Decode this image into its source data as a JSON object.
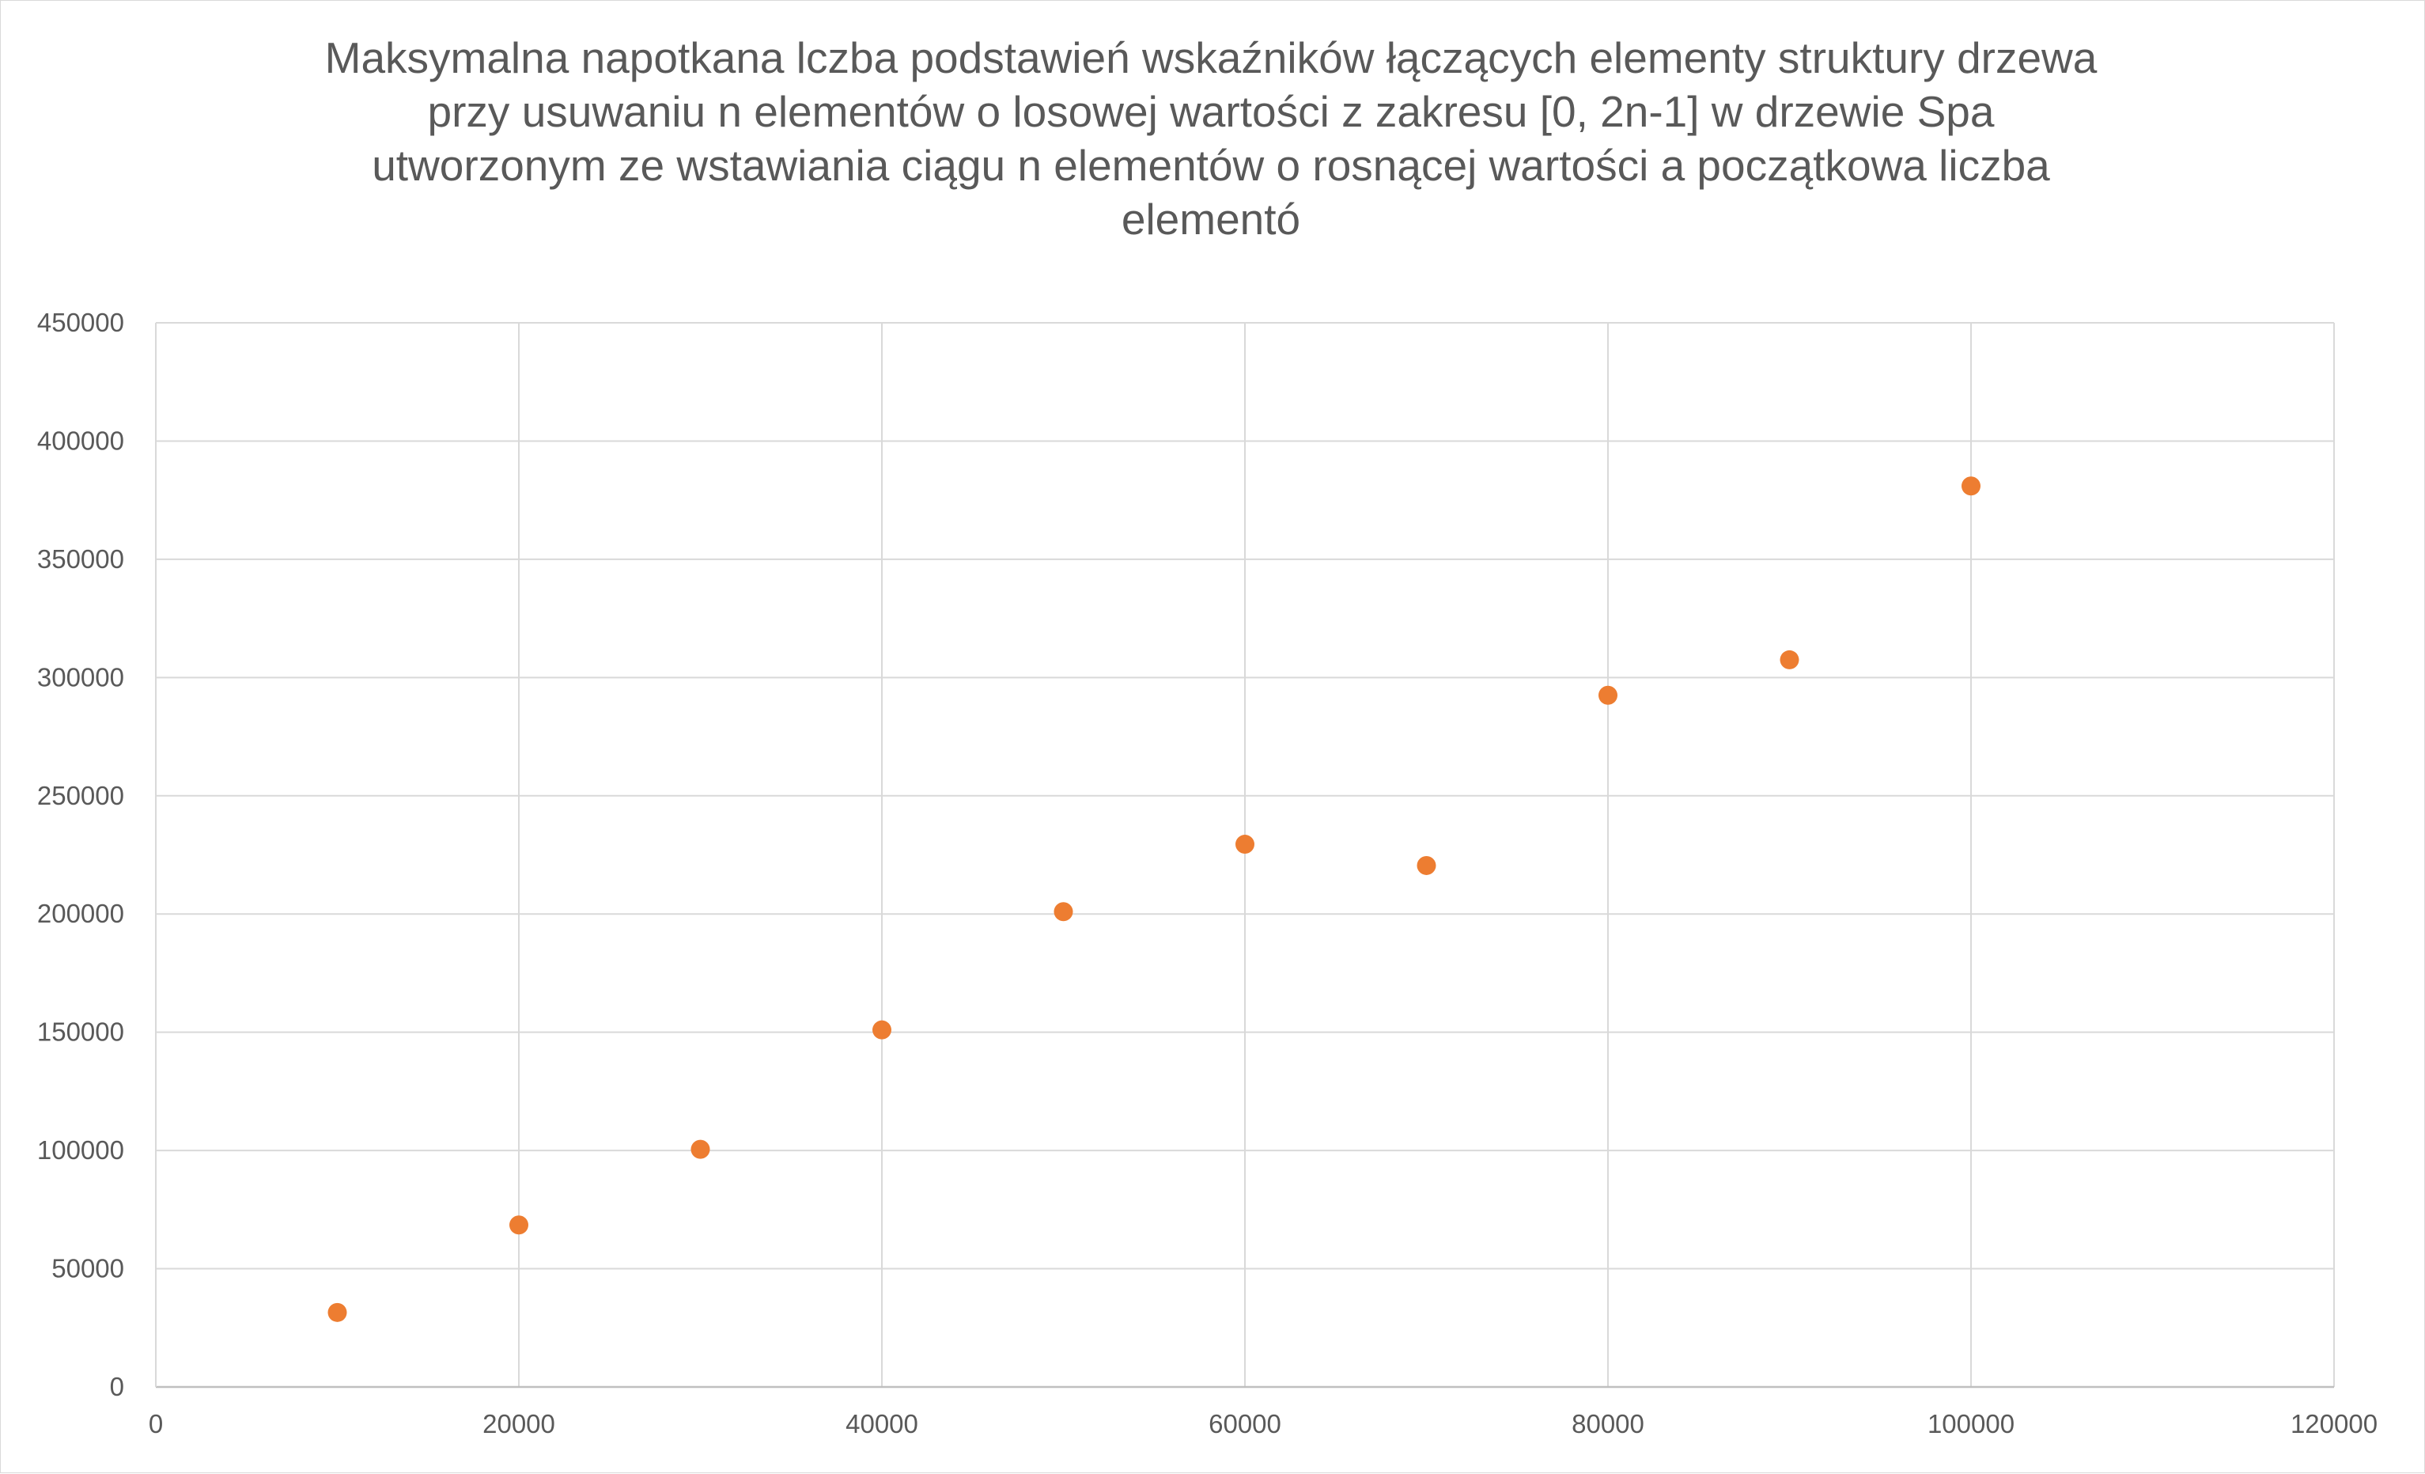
{
  "chart_data": {
    "type": "scatter",
    "title_lines": [
      "Maksymalna napotkana lczba podstawień wskaźników łączących elementy struktury drzewa",
      "przy usuwaniu n elementów o losowej wartości z zakresu [0, 2n-1] w drzewie Spa",
      "utworzonym ze wstawiania ciągu n elementów o rosnącej wartości a początkowa liczba",
      "elementó"
    ],
    "xlabel": "",
    "ylabel": "",
    "xlim": [
      0,
      120000
    ],
    "ylim": [
      0,
      450000
    ],
    "x_ticks": [
      0,
      20000,
      40000,
      60000,
      80000,
      100000,
      120000
    ],
    "y_ticks": [
      0,
      50000,
      100000,
      150000,
      200000,
      250000,
      300000,
      350000,
      400000,
      450000
    ],
    "grid": true,
    "legend": "none",
    "marker_color": "#ED7D31",
    "series": [
      {
        "x": [
          10000,
          20000,
          30000,
          40000,
          50000,
          60000,
          70000,
          80000,
          90000,
          100000
        ],
        "y": [
          31500,
          68500,
          100500,
          151000,
          201000,
          229500,
          220500,
          292500,
          307500,
          381000
        ]
      }
    ]
  }
}
